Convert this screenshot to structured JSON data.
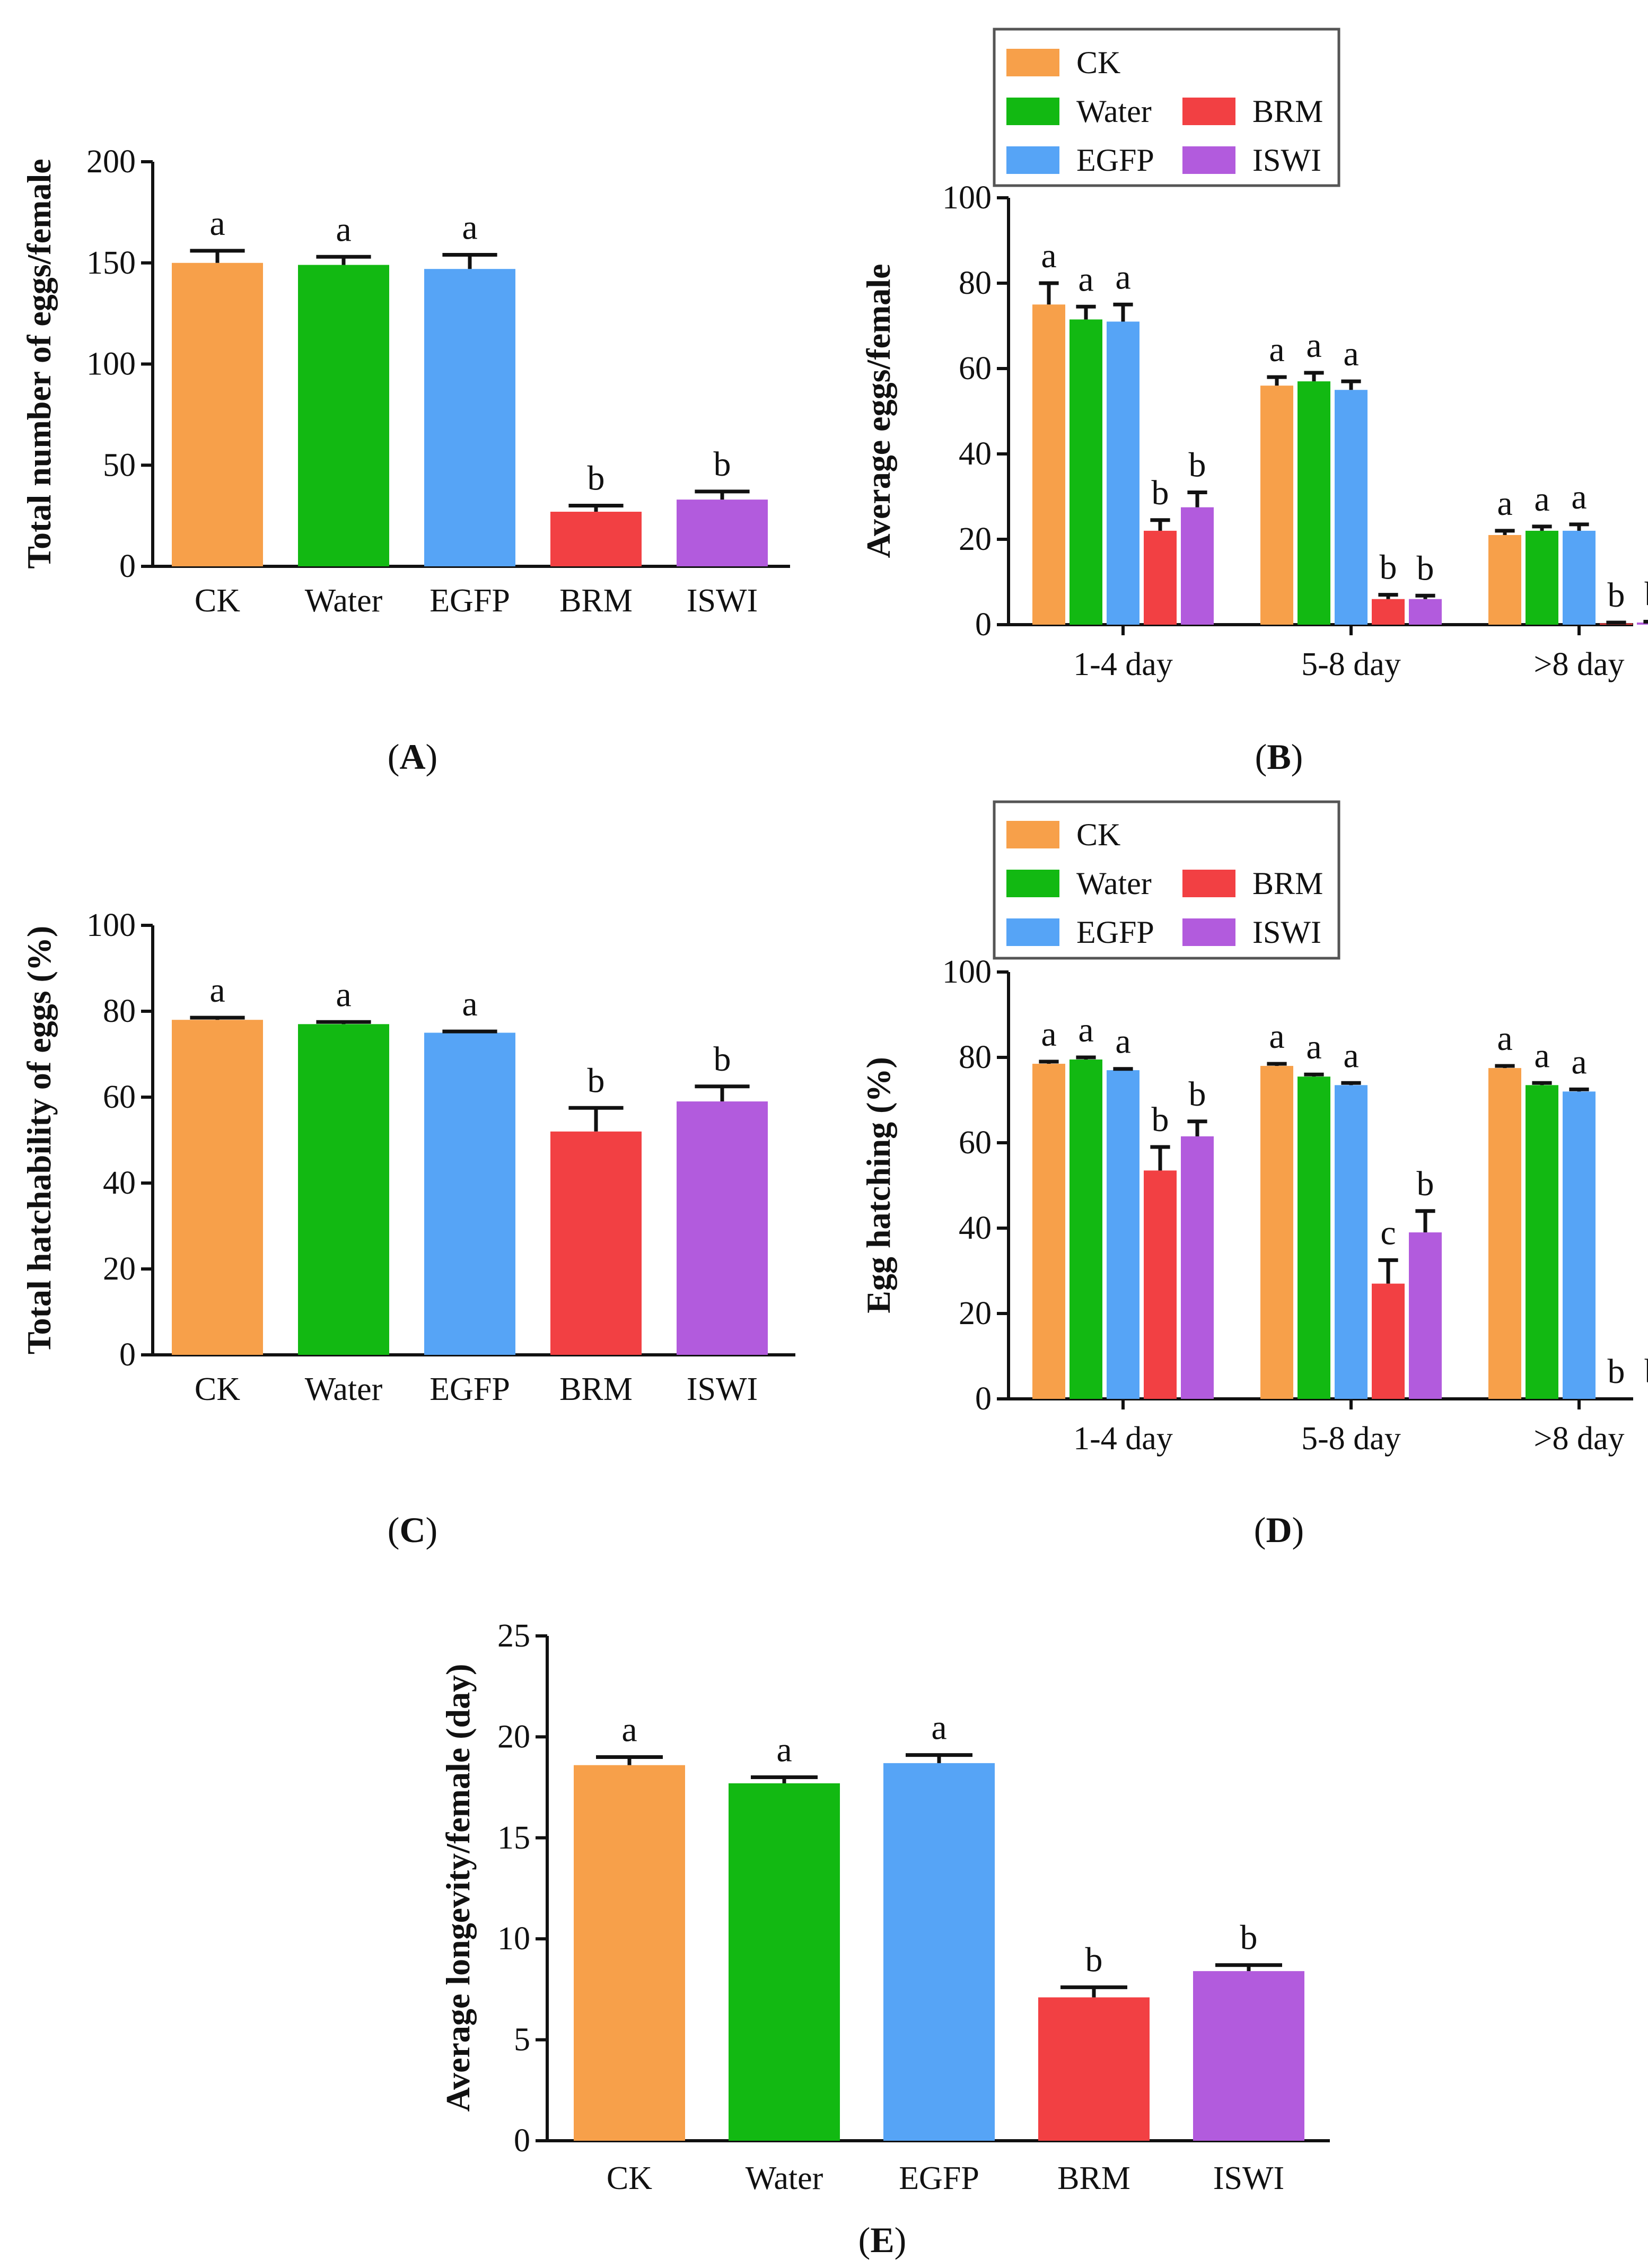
{
  "colors": {
    "CK": "#F7A04A",
    "Water": "#12B912",
    "EGFP": "#56A4F6",
    "BRM": "#F24043",
    "ISWI": "#B25BDD"
  },
  "chart_data": [
    {
      "type": "bar",
      "panel": "A",
      "ylabel": "Total number of eggs/female",
      "ylim": [
        0,
        200
      ],
      "yticks": [
        "0",
        "50",
        "100",
        "150",
        "200"
      ],
      "categories": [
        "CK",
        "Water",
        "EGFP",
        "BRM",
        "ISWI"
      ],
      "values": [
        150,
        149,
        147,
        27,
        33
      ],
      "errors": [
        6,
        4,
        7,
        3,
        4
      ],
      "sig": [
        "a",
        "a",
        "a",
        "b",
        "b"
      ]
    },
    {
      "type": "bar",
      "panel": "B",
      "ylabel": "Average eggs/female",
      "ylim": [
        0,
        100
      ],
      "yticks": [
        "0",
        "20",
        "40",
        "60",
        "80",
        "100"
      ],
      "categories": [
        "1-4 day",
        "5-8 day",
        ">8 day"
      ],
      "series": [
        {
          "name": "CK",
          "values": [
            75,
            56,
            21
          ],
          "errors": [
            5,
            2,
            1
          ],
          "sig": [
            "a",
            "a",
            "a"
          ]
        },
        {
          "name": "Water",
          "values": [
            71.5,
            57,
            22
          ],
          "errors": [
            3,
            2,
            1
          ],
          "sig": [
            "a",
            "a",
            "a"
          ]
        },
        {
          "name": "EGFP",
          "values": [
            71,
            55,
            22
          ],
          "errors": [
            4,
            2,
            1.5
          ],
          "sig": [
            "a",
            "a",
            "a"
          ]
        },
        {
          "name": "BRM",
          "values": [
            22,
            6,
            0.3
          ],
          "errors": [
            2.5,
            1,
            0.2
          ],
          "sig": [
            "b",
            "b",
            "b"
          ]
        },
        {
          "name": "ISWI",
          "values": [
            27.5,
            6,
            0.5
          ],
          "errors": [
            3.5,
            0.8,
            0.2
          ],
          "sig": [
            "b",
            "b",
            "b"
          ]
        }
      ]
    },
    {
      "type": "bar",
      "panel": "C",
      "ylabel": "Total hatchability of eggs (%)",
      "ylim": [
        0,
        100
      ],
      "yticks": [
        "0",
        "20",
        "40",
        "60",
        "80",
        "100"
      ],
      "categories": [
        "CK",
        "Water",
        "EGFP",
        "BRM",
        "ISWI"
      ],
      "values": [
        78,
        77,
        75,
        52,
        59
      ],
      "errors": [
        0.5,
        0.5,
        0.3,
        5.5,
        3.5
      ],
      "sig": [
        "a",
        "a",
        "a",
        "b",
        "b"
      ]
    },
    {
      "type": "bar",
      "panel": "D",
      "ylabel": "Egg hatching (%)",
      "ylim": [
        0,
        100
      ],
      "yticks": [
        "0",
        "20",
        "40",
        "60",
        "80",
        "100"
      ],
      "categories": [
        "1-4 day",
        "5-8 day",
        ">8 day"
      ],
      "series": [
        {
          "name": "CK",
          "values": [
            78.5,
            78,
            77.5
          ],
          "errors": [
            0.5,
            0.5,
            0.5
          ],
          "sig": [
            "a",
            "a",
            "a"
          ]
        },
        {
          "name": "Water",
          "values": [
            79.5,
            75.5,
            73.5
          ],
          "errors": [
            0.5,
            0.5,
            0.5
          ],
          "sig": [
            "a",
            "a",
            "a"
          ]
        },
        {
          "name": "EGFP",
          "values": [
            77,
            73.5,
            72
          ],
          "errors": [
            0.3,
            0.5,
            0.5
          ],
          "sig": [
            "a",
            "a",
            "a"
          ]
        },
        {
          "name": "BRM",
          "values": [
            53.5,
            27,
            0
          ],
          "errors": [
            5.5,
            5.5,
            0
          ],
          "sig": [
            "b",
            "c",
            "b"
          ]
        },
        {
          "name": "ISWI",
          "values": [
            61.5,
            39,
            0
          ],
          "errors": [
            3.5,
            5,
            0
          ],
          "sig": [
            "b",
            "b",
            "b"
          ]
        }
      ]
    },
    {
      "type": "bar",
      "panel": "E",
      "ylabel": "Average longevity/female (day)",
      "ylim": [
        0,
        25
      ],
      "yticks": [
        "0",
        "5",
        "10",
        "15",
        "20",
        "25"
      ],
      "categories": [
        "CK",
        "Water",
        "EGFP",
        "BRM",
        "ISWI"
      ],
      "values": [
        18.6,
        17.7,
        18.7,
        7.1,
        8.4
      ],
      "errors": [
        0.4,
        0.3,
        0.4,
        0.5,
        0.3
      ],
      "sig": [
        "a",
        "a",
        "a",
        "b",
        "b"
      ]
    }
  ],
  "legend": {
    "B": [
      "CK",
      "Water",
      "BRM",
      "EGFP",
      "ISWI"
    ],
    "D": [
      "CK",
      "Water",
      "BRM",
      "EGFP",
      "ISWI"
    ]
  },
  "panel_labels": {
    "A": {
      "open": "(",
      "letter": "A",
      "close": ")"
    },
    "B": {
      "open": "(",
      "letter": "B",
      "close": ")"
    },
    "C": {
      "open": "(",
      "letter": "C",
      "close": ")"
    },
    "D": {
      "open": "(",
      "letter": "D",
      "close": ")"
    },
    "E": {
      "open": "(",
      "letter": "E",
      "close": ")"
    }
  }
}
